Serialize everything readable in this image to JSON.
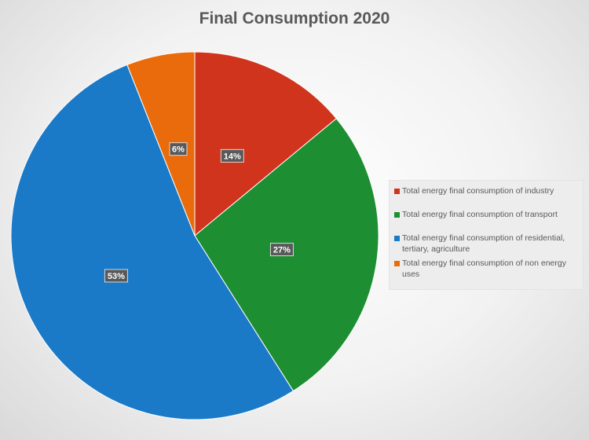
{
  "chart_data": {
    "type": "pie",
    "title": "Final Consumption 2020",
    "categories": [
      "Total energy final consumption of industry",
      "Total energy final consumption of transport",
      "Total energy final consumption of residential, tertiary, agriculture",
      "Total energy final consumption of non energy uses"
    ],
    "values": [
      14,
      27,
      53,
      6
    ],
    "data_labels": [
      "14%",
      "27%",
      "53%",
      "6%"
    ],
    "colors": [
      "#d0341c",
      "#1e8e33",
      "#1a7ac7",
      "#e96b0c"
    ],
    "legend_position": "right"
  }
}
